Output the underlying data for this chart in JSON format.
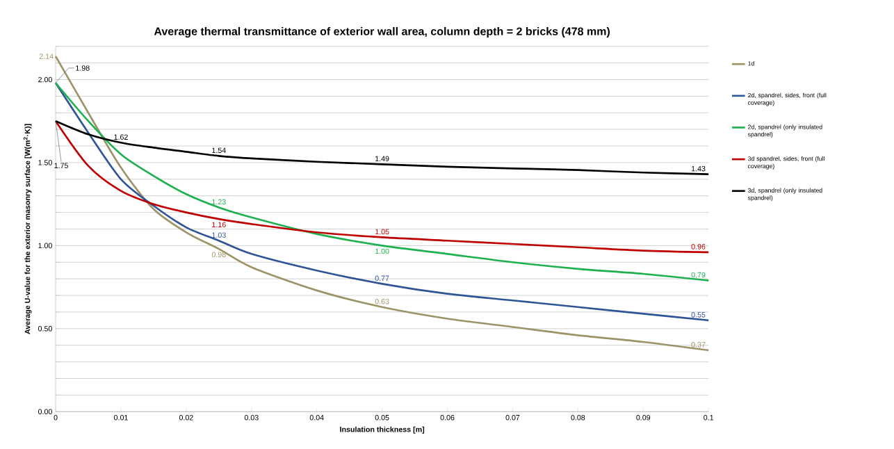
{
  "chart_data": {
    "type": "line",
    "title": "Average thermal transmittance of exterior wall area, column depth = 2 bricks (478 mm)",
    "xlabel": "Insulation thickness [m]",
    "ylabel": "Average U-value  for the exterior masonry surface [W(m$^{2}$·K)]",
    "x": [
      0,
      0.005,
      0.01,
      0.015,
      0.02,
      0.025,
      0.03,
      0.04,
      0.05,
      0.06,
      0.07,
      0.08,
      0.09,
      0.1
    ],
    "series": [
      {
        "name": "1d",
        "color": "#9c9468",
        "values": [
          2.14,
          1.8,
          1.47,
          1.22,
          1.08,
          0.98,
          0.87,
          0.73,
          0.63,
          0.56,
          0.51,
          0.46,
          0.42,
          0.37
        ]
      },
      {
        "name": "2d, spandrel, sides, front (full coverage)",
        "color": "#2f5597",
        "values": [
          1.98,
          1.68,
          1.4,
          1.24,
          1.11,
          1.03,
          0.95,
          0.85,
          0.77,
          0.71,
          0.67,
          0.63,
          0.59,
          0.55
        ]
      },
      {
        "name": "2d, spandrel (only insulated spandrel)",
        "color": "#1fb04f",
        "values": [
          1.98,
          1.75,
          1.55,
          1.42,
          1.31,
          1.23,
          1.17,
          1.07,
          1.0,
          0.95,
          0.9,
          0.86,
          0.83,
          0.79
        ]
      },
      {
        "name": "3d spandrel, sides, front (full coverage)",
        "color": "#c00000",
        "values": [
          1.75,
          1.48,
          1.33,
          1.25,
          1.2,
          1.16,
          1.13,
          1.08,
          1.05,
          1.03,
          1.01,
          0.99,
          0.97,
          0.96
        ]
      },
      {
        "name": "3d, spandrel (only insulated spandrel)",
        "color": "#000000",
        "values": [
          1.75,
          1.67,
          1.62,
          1.59,
          1.565,
          1.54,
          1.525,
          1.505,
          1.49,
          1.475,
          1.465,
          1.455,
          1.44,
          1.43
        ]
      }
    ],
    "xlim": [
      0,
      0.1
    ],
    "xticks": [
      0,
      0.01,
      0.02,
      0.03,
      0.04,
      0.05,
      0.06,
      0.07,
      0.08,
      0.09,
      0.1
    ],
    "ylim": [
      0,
      2.2
    ],
    "yticks": [
      {
        "value": 0,
        "label": "0.00"
      },
      {
        "value": 0.1,
        "label": null
      },
      {
        "value": 0.2,
        "label": null
      },
      {
        "value": 0.3,
        "label": null
      },
      {
        "value": 0.4,
        "label": null
      },
      {
        "value": 0.5,
        "label": "0.50"
      },
      {
        "value": 0.6,
        "label": null
      },
      {
        "value": 0.7,
        "label": null
      },
      {
        "value": 0.8,
        "label": null
      },
      {
        "value": 0.9,
        "label": null
      },
      {
        "value": 1.0,
        "label": "1.00"
      },
      {
        "value": 1.1,
        "label": null
      },
      {
        "value": 1.2,
        "label": null
      },
      {
        "value": 1.3,
        "label": null
      },
      {
        "value": 1.4,
        "label": null
      },
      {
        "value": 1.5,
        "label": "1.50"
      },
      {
        "value": 1.6,
        "label": null
      },
      {
        "value": 1.7,
        "label": null
      },
      {
        "value": 1.8,
        "label": null
      },
      {
        "value": 1.9,
        "label": null
      },
      {
        "value": 2.0,
        "label": "2.00"
      },
      {
        "value": 2.1,
        "label": null
      },
      {
        "value": 2.2,
        "label": null
      }
    ],
    "grid": "y",
    "legend": "right",
    "marker": "none",
    "line_style": "solid",
    "annotations": [
      {
        "text": "2.14",
        "x": 0,
        "y": 2.14
      },
      {
        "text": "1.98",
        "x": 0,
        "y": 1.98
      },
      {
        "text": "1.75",
        "x": 0,
        "y": 1.75
      },
      {
        "text": "1.62",
        "x": 0.01,
        "y": 1.62
      },
      {
        "text": "1.54",
        "x": 0.025,
        "y": 1.54
      },
      {
        "text": "1.49",
        "x": 0.05,
        "y": 1.49
      },
      {
        "text": "1.43",
        "x": 0.1,
        "y": 1.43
      },
      {
        "text": "1.23",
        "x": 0.025,
        "y": 1.23
      },
      {
        "text": "1.16",
        "x": 0.025,
        "y": 1.16
      },
      {
        "text": "1.03",
        "x": 0.025,
        "y": 1.03
      },
      {
        "text": "0.98",
        "x": 0.025,
        "y": 0.98
      },
      {
        "text": "1.05",
        "x": 0.05,
        "y": 1.05
      },
      {
        "text": "1.00",
        "x": 0.05,
        "y": 1.0
      },
      {
        "text": "0.77",
        "x": 0.05,
        "y": 0.77
      },
      {
        "text": "0.63",
        "x": 0.05,
        "y": 0.63
      },
      {
        "text": "0.96",
        "x": 0.1,
        "y": 0.96
      },
      {
        "text": "0.79",
        "x": 0.1,
        "y": 0.79
      },
      {
        "text": "0.55",
        "x": 0.1,
        "y": 0.55
      },
      {
        "text": "0.37",
        "x": 0.1,
        "y": 0.37
      }
    ]
  }
}
